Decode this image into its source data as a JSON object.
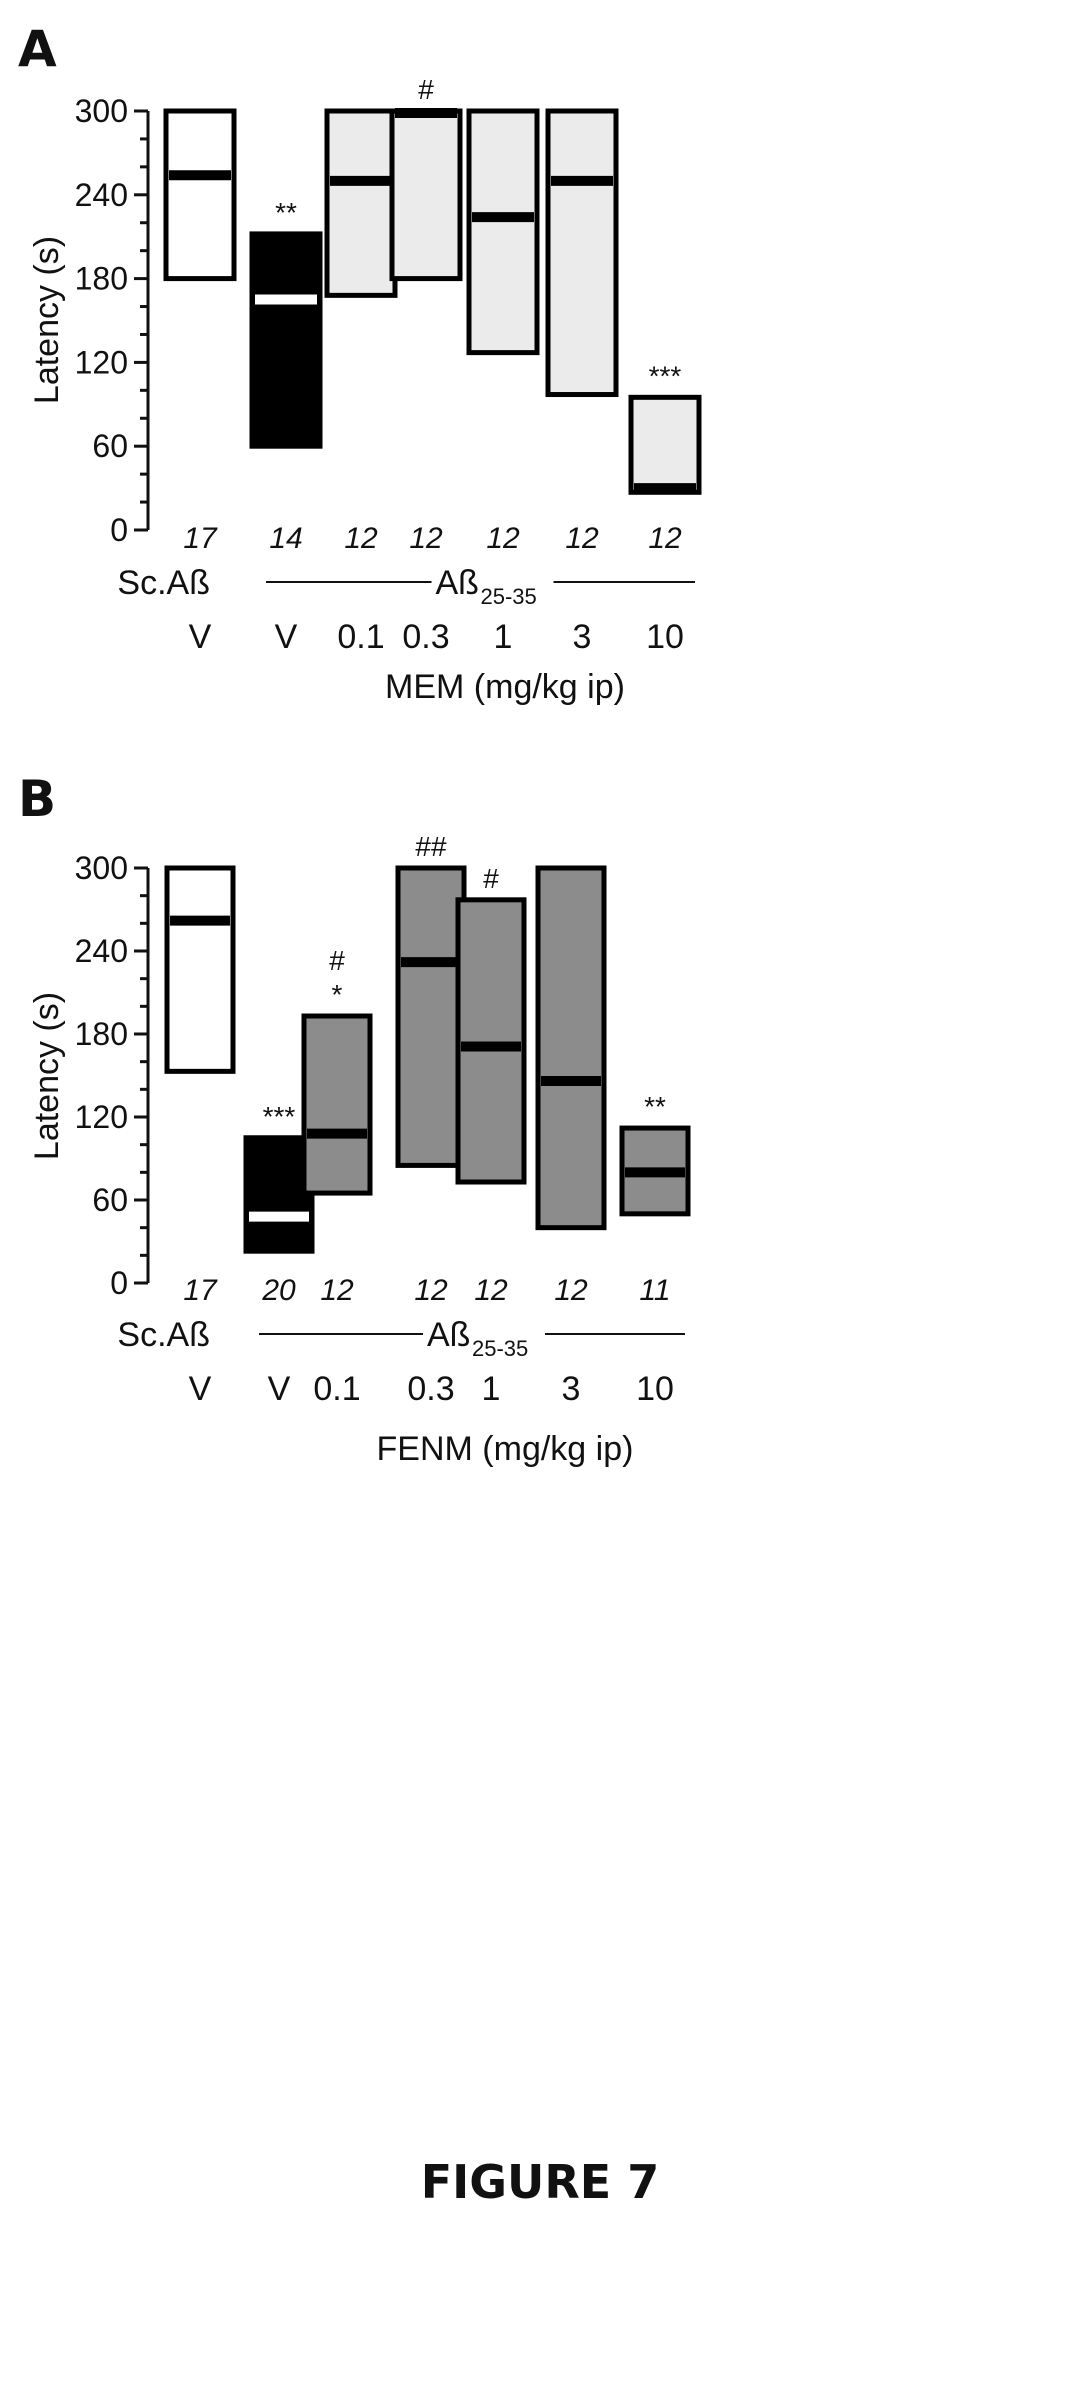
{
  "figure_caption": "FIGURE 7",
  "chart_data": [
    {
      "panel": "A",
      "type": "box",
      "ylabel": "Latency (s)",
      "ylim": [
        0,
        300
      ],
      "yticks": [
        0,
        60,
        120,
        180,
        240,
        300
      ],
      "group_label_left": "Sc.Aß",
      "group_label_main": "Aß",
      "group_label_main_sub": "25-35",
      "drug_label": "MEM (mg/kg ip)",
      "colors": {
        "control": "#ffffff",
        "vehicle": "#000000",
        "treated": "#ebebeb"
      },
      "bars": [
        {
          "dose": "V",
          "n": "17",
          "low": 180,
          "high": 300,
          "median": 254,
          "fill": "control",
          "marker": ""
        },
        {
          "dose": "V",
          "n": "14",
          "low": 60,
          "high": 212,
          "median": 165,
          "fill": "vehicle",
          "marker": "**"
        },
        {
          "dose": "0.1",
          "n": "12",
          "low": 168,
          "high": 300,
          "median": 250,
          "fill": "treated",
          "marker": ""
        },
        {
          "dose": "0.3",
          "n": "12",
          "low": 180,
          "high": 300,
          "median": 300,
          "fill": "treated",
          "marker": "#"
        },
        {
          "dose": "1",
          "n": "12",
          "low": 127,
          "high": 300,
          "median": 224,
          "fill": "treated",
          "marker": ""
        },
        {
          "dose": "3",
          "n": "12",
          "low": 97,
          "high": 300,
          "median": 250,
          "fill": "treated",
          "marker": ""
        },
        {
          "dose": "10",
          "n": "12",
          "low": 27,
          "high": 95,
          "median": 30,
          "fill": "treated",
          "marker": "***"
        }
      ]
    },
    {
      "panel": "B",
      "type": "box",
      "ylabel": "Latency (s)",
      "ylim": [
        0,
        300
      ],
      "yticks": [
        0,
        60,
        120,
        180,
        240,
        300
      ],
      "group_label_left": "Sc.Aß",
      "group_label_main": "Aß",
      "group_label_main_sub": "25-35",
      "drug_label": "FENM (mg/kg ip)",
      "colors": {
        "control": "#ffffff",
        "vehicle": "#000000",
        "treated": "#8c8c8c"
      },
      "bars": [
        {
          "dose": "V",
          "n": "17",
          "low": 153,
          "high": 300,
          "median": 262,
          "fill": "control",
          "marker": ""
        },
        {
          "dose": "V",
          "n": "20",
          "low": 23,
          "high": 105,
          "median": 48,
          "fill": "vehicle",
          "marker": "***"
        },
        {
          "dose": "0.1",
          "n": "12",
          "low": 65,
          "high": 193,
          "median": 108,
          "fill": "treated",
          "marker": "#\n*"
        },
        {
          "dose": "0.3",
          "n": "12",
          "low": 85,
          "high": 300,
          "median": 232,
          "fill": "treated",
          "marker": "##"
        },
        {
          "dose": "1",
          "n": "12",
          "low": 73,
          "high": 277,
          "median": 171,
          "fill": "treated",
          "marker": "#"
        },
        {
          "dose": "3",
          "n": "12",
          "low": 40,
          "high": 300,
          "median": 146,
          "fill": "treated",
          "marker": ""
        },
        {
          "dose": "10",
          "n": "11",
          "low": 50,
          "high": 112,
          "median": 80,
          "fill": "treated",
          "marker": "**"
        }
      ]
    }
  ]
}
